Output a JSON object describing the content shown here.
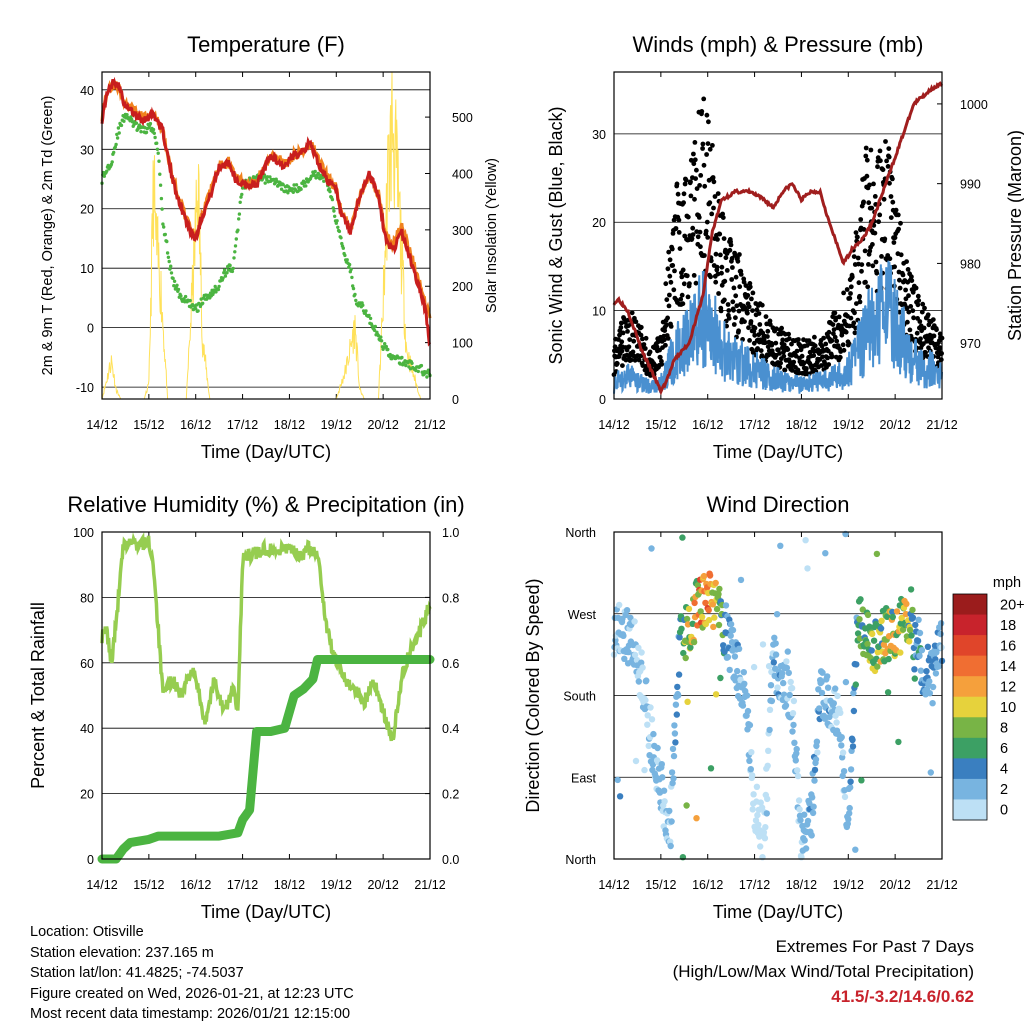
{
  "colors": {
    "temp2m": "#c81e1e",
    "temp9m": "#f0821e",
    "dewpoint": "#4bb441",
    "solar": "#ffe15a",
    "wind": "#4a90d0",
    "gust": "#000000",
    "pressure": "#a01e1e",
    "rh": "#96cd50",
    "precip": "#4bb441",
    "extremes": "#c8232c"
  },
  "chart_data": [
    {
      "id": "temperature",
      "type": "line",
      "title": "Temperature (F)",
      "xlabel": "Time (Day/UTC)",
      "ylabel": "2m & 9m T (Red, Orange) & 2m Td (Green)",
      "ylabel_right": "Solar Insolation (Yellow)",
      "x_ticks": [
        "14/12",
        "15/12",
        "16/12",
        "17/12",
        "18/12",
        "19/12",
        "20/12",
        "21/12"
      ],
      "ylim": [
        -12,
        43
      ],
      "yticks": [
        -10,
        0,
        10,
        20,
        30,
        40
      ],
      "ylim_right": [
        0,
        580
      ],
      "yticks_right": [
        0,
        100,
        200,
        300,
        400,
        500
      ],
      "grid": true,
      "series": [
        {
          "name": "2m T",
          "color": "#c81e1e",
          "x": [
            0,
            0.1,
            0.25,
            0.35,
            0.5,
            0.7,
            0.9,
            1.1,
            1.3,
            1.5,
            1.7,
            1.9,
            2.0,
            2.1,
            2.3,
            2.5,
            2.7,
            2.85,
            3.0,
            3.3,
            3.6,
            3.75,
            3.9,
            4.1,
            4.3,
            4.45,
            4.6,
            4.8,
            5.0,
            5.1,
            5.3,
            5.5,
            5.7,
            5.9,
            6.05,
            6.2,
            6.4,
            6.6,
            6.8,
            6.9,
            7.0
          ],
          "values": [
            35,
            39,
            41.5,
            41,
            37,
            36,
            35,
            36,
            33,
            25,
            20,
            16,
            15,
            18,
            22,
            27,
            28,
            25,
            24,
            24,
            29,
            28,
            27,
            29,
            30,
            31,
            28,
            25,
            23,
            19,
            16,
            22,
            26,
            22,
            15,
            13,
            16,
            11,
            6,
            3,
            -3
          ]
        },
        {
          "name": "9m T",
          "color": "#f0821e",
          "x": [
            0,
            0.1,
            0.25,
            0.35,
            0.5,
            0.7,
            0.9,
            1.1,
            1.3,
            1.5,
            1.7,
            1.9,
            2.0,
            2.1,
            2.3,
            2.5,
            2.7,
            2.85,
            3.0,
            3.3,
            3.6,
            3.75,
            3.9,
            4.1,
            4.3,
            4.45,
            4.6,
            4.8,
            5.0,
            5.1,
            5.3,
            5.5,
            5.7,
            5.9,
            6.05,
            6.2,
            6.4,
            6.6,
            6.8,
            6.9,
            7.0
          ],
          "values": [
            35.5,
            39.5,
            41,
            40.5,
            37.5,
            36.5,
            35.5,
            36,
            33,
            25.5,
            20.5,
            16.5,
            15.5,
            18,
            22.5,
            27,
            28,
            25.5,
            24.5,
            24.5,
            29,
            28.5,
            27.5,
            29,
            30,
            31,
            28.5,
            25.5,
            23.5,
            19.5,
            16.5,
            22,
            25.5,
            22.5,
            16,
            14,
            17,
            12,
            7,
            4,
            2
          ]
        },
        {
          "name": "2m Td",
          "color": "#4bb441",
          "x": [
            0,
            0.2,
            0.35,
            0.5,
            0.7,
            0.9,
            1.0,
            1.1,
            1.2,
            1.3,
            1.5,
            1.7,
            1.9,
            2.0,
            2.2,
            2.5,
            2.6,
            2.7,
            2.8,
            3.0,
            3.3,
            3.6,
            3.8,
            4.0,
            4.3,
            4.5,
            4.8,
            5.0,
            5.2,
            5.3,
            5.4,
            5.6,
            5.8,
            6.0,
            6.2,
            6.5,
            6.8,
            7.0
          ],
          "values": [
            25,
            28,
            33,
            36,
            34,
            33,
            34,
            33,
            30,
            18,
            8,
            5,
            4,
            3,
            5,
            7,
            9,
            10,
            10,
            24,
            25,
            25,
            24,
            23,
            24,
            26,
            25,
            18,
            12,
            10,
            5,
            3,
            0,
            -3,
            -5,
            -6,
            -7,
            -8
          ]
        },
        {
          "name": "Solar",
          "color": "#ffe15a",
          "x": [
            0,
            0.2,
            0.3,
            0.4,
            0.55,
            0.9,
            1.0,
            1.1,
            1.15,
            1.25,
            1.4,
            1.6,
            1.8,
            1.95,
            2.05,
            2.15,
            2.3,
            2.6,
            2.8,
            3.2,
            3.6,
            4.0,
            4.4,
            4.8,
            5.0,
            5.2,
            5.4,
            5.5,
            5.6,
            5.9,
            6.0,
            6.1,
            6.2,
            6.35,
            6.5,
            6.8,
            7.0
          ],
          "values": [
            0,
            80,
            20,
            0,
            0,
            0,
            30,
            450,
            330,
            240,
            0,
            0,
            0,
            260,
            450,
            120,
            0,
            0,
            0,
            0,
            0,
            0,
            0,
            0,
            0,
            60,
            150,
            20,
            0,
            0,
            200,
            450,
            580,
            380,
            100,
            0,
            0
          ]
        }
      ]
    },
    {
      "id": "winds",
      "type": "scatter",
      "title": "Winds (mph) & Pressure (mb)",
      "xlabel": "Time (Day/UTC)",
      "ylabel": "Sonic Wind & Gust (Blue, Black)",
      "ylabel_right": "Station Pressure (Maroon)",
      "x_ticks": [
        "14/12",
        "15/12",
        "16/12",
        "17/12",
        "18/12",
        "19/12",
        "20/12",
        "21/12"
      ],
      "ylim": [
        0,
        37
      ],
      "yticks": [
        0,
        10,
        20,
        30
      ],
      "ylim_right": [
        963,
        1004
      ],
      "yticks_right": [
        970,
        980,
        990,
        1000
      ],
      "grid": true,
      "series": [
        {
          "name": "Sonic Wind",
          "color": "#4a90d0",
          "x": [
            0,
            0.3,
            0.6,
            0.8,
            1.0,
            1.3,
            1.6,
            1.9,
            2.1,
            2.4,
            2.7,
            3.0,
            3.3,
            3.6,
            3.9,
            4.2,
            4.5,
            4.8,
            5.0,
            5.2,
            5.4,
            5.6,
            5.8,
            6.0,
            6.3,
            6.6,
            6.8,
            7.0
          ],
          "values": [
            2,
            3,
            2,
            1.5,
            2,
            6,
            8,
            11,
            9,
            6,
            5,
            4,
            3,
            2.5,
            2,
            2,
            2.5,
            3,
            4,
            6,
            9,
            10,
            12,
            10,
            6,
            4,
            4,
            3
          ]
        },
        {
          "name": "Gust",
          "color": "#000000",
          "x": [
            0,
            0.3,
            0.6,
            0.8,
            1.0,
            1.3,
            1.6,
            1.9,
            2.1,
            2.4,
            2.7,
            3.0,
            3.3,
            3.6,
            3.9,
            4.2,
            4.5,
            4.8,
            5.0,
            5.2,
            5.4,
            5.6,
            5.8,
            6.0,
            6.3,
            6.6,
            6.8,
            7.0
          ],
          "values": [
            5,
            8,
            6,
            4,
            6,
            18,
            20,
            26,
            22,
            14,
            12,
            9,
            7,
            6,
            5,
            5,
            6,
            8,
            10,
            15,
            22,
            20,
            23,
            17,
            11,
            8,
            7,
            6
          ]
        },
        {
          "name": "Station Pressure",
          "color": "#a01e1e",
          "x": [
            0,
            0.1,
            0.3,
            0.6,
            1.0,
            1.1,
            1.3,
            1.6,
            1.9,
            2.1,
            2.3,
            2.6,
            2.9,
            3.2,
            3.4,
            3.6,
            3.8,
            4.0,
            4.2,
            4.4,
            4.6,
            4.9,
            5.1,
            5.3,
            5.5,
            5.8,
            6.1,
            6.4,
            6.6,
            6.8,
            7.0
          ],
          "values": [
            975,
            975.5,
            974,
            969,
            964,
            965,
            968,
            970,
            976,
            984,
            988,
            989,
            989,
            988,
            987,
            989,
            990,
            988,
            989,
            989,
            985,
            980,
            982,
            983,
            985,
            990,
            995,
            1000,
            1001,
            1002,
            1002.5
          ]
        }
      ]
    },
    {
      "id": "humidity",
      "type": "line",
      "title": "Relative Humidity (%) & Precipitation (in)",
      "xlabel": "Time (Day/UTC)",
      "ylabel": "Percent & Total Rainfall",
      "x_ticks": [
        "14/12",
        "15/12",
        "16/12",
        "17/12",
        "18/12",
        "19/12",
        "20/12",
        "21/12"
      ],
      "ylim": [
        0,
        100
      ],
      "yticks": [
        0,
        20,
        40,
        60,
        80,
        100
      ],
      "ylim_right": [
        0,
        1.0
      ],
      "yticks_right": [
        "0.0",
        "0.2",
        "0.4",
        "0.6",
        "0.8",
        "1.0"
      ],
      "grid": true,
      "series": [
        {
          "name": "RH",
          "color": "#96cd50",
          "x": [
            0,
            0.1,
            0.2,
            0.3,
            0.45,
            0.6,
            0.8,
            1.0,
            1.1,
            1.3,
            1.5,
            1.7,
            1.9,
            2.0,
            2.2,
            2.4,
            2.6,
            2.8,
            2.9,
            3.0,
            3.2,
            3.5,
            3.8,
            4.0,
            4.2,
            4.4,
            4.6,
            4.8,
            5.0,
            5.2,
            5.4,
            5.6,
            5.8,
            6.0,
            6.2,
            6.4,
            6.6,
            6.8,
            7.0
          ],
          "values": [
            68,
            70,
            60,
            72,
            95,
            97,
            96,
            97,
            90,
            50,
            55,
            50,
            58,
            55,
            42,
            55,
            45,
            52,
            44,
            92,
            93,
            95,
            94,
            96,
            92,
            95,
            94,
            70,
            60,
            55,
            52,
            48,
            55,
            45,
            36,
            55,
            65,
            70,
            78
          ]
        },
        {
          "name": "Total Precipitation",
          "color": "#4bb441",
          "x": [
            0,
            0.3,
            0.45,
            0.6,
            1.0,
            1.2,
            1.5,
            2.0,
            2.5,
            2.9,
            3.0,
            3.15,
            3.3,
            3.6,
            3.9,
            4.0,
            4.1,
            4.3,
            4.5,
            4.6,
            4.7,
            5.0,
            5.5,
            6.0,
            6.5,
            7.0
          ],
          "values": [
            0,
            0,
            0.03,
            0.05,
            0.06,
            0.07,
            0.07,
            0.07,
            0.07,
            0.08,
            0.12,
            0.15,
            0.39,
            0.39,
            0.4,
            0.45,
            0.5,
            0.52,
            0.55,
            0.61,
            0.61,
            0.61,
            0.61,
            0.61,
            0.61,
            0.61
          ]
        }
      ]
    },
    {
      "id": "wind_direction",
      "type": "scatter",
      "title": "Wind Direction",
      "xlabel": "Time (Day/UTC)",
      "ylabel": "Direction (Colored By Speed)",
      "x_ticks": [
        "14/12",
        "15/12",
        "16/12",
        "17/12",
        "18/12",
        "19/12",
        "20/12",
        "21/12"
      ],
      "ylim": [
        0,
        360
      ],
      "yticks": [
        "North",
        "East",
        "South",
        "West",
        "North"
      ],
      "grid": true,
      "colorbar": {
        "label": "mph",
        "labels": [
          "20+",
          "18",
          "16",
          "14",
          "12",
          "10",
          "8",
          "6",
          "4",
          "2",
          "0"
        ],
        "colors": [
          "#9b1c1c",
          "#c8232c",
          "#e0452a",
          "#f06e32",
          "#f5a03c",
          "#e6d23c",
          "#78b446",
          "#3ca064",
          "#3a7fc0",
          "#78b4e0",
          "#bde0f5"
        ]
      },
      "series": [
        {
          "name": "direction",
          "x": [
            0,
            0.2,
            0.4,
            0.6,
            0.8,
            1.0,
            1.2,
            1.4,
            1.6,
            1.8,
            2.0,
            2.2,
            2.4,
            2.6,
            2.8,
            3.0,
            3.2,
            3.4,
            3.6,
            3.8,
            4.0,
            4.2,
            4.4,
            4.6,
            4.8,
            5.0,
            5.2,
            5.4,
            5.6,
            5.8,
            6.0,
            6.2,
            6.4,
            6.6,
            6.8,
            7.0
          ],
          "values": [
            255,
            250,
            240,
            200,
            130,
            80,
            30,
            240,
            255,
            280,
            290,
            275,
            250,
            215,
            180,
            60,
            20,
            220,
            200,
            180,
            20,
            40,
            190,
            170,
            150,
            40,
            260,
            250,
            230,
            250,
            240,
            270,
            240,
            210,
            200,
            240
          ],
          "speeds": [
            3,
            3,
            2,
            2,
            2,
            3,
            2,
            5,
            10,
            13,
            12,
            10,
            4,
            3,
            3,
            1,
            1,
            3,
            3,
            2,
            2,
            3,
            3,
            3,
            2,
            3,
            6,
            8,
            8,
            10,
            9,
            11,
            6,
            4,
            4,
            3
          ]
        }
      ]
    }
  ],
  "footer": {
    "location": "Location: Otisville",
    "elevation": "Station elevation: 237.165 m",
    "latlon": "Station lat/lon: 41.4825; -74.5037",
    "created": "Figure created on Wed, 2026-01-21, at 12:23 UTC",
    "recent": "Most recent data timestamp: 2026/01/21 12:15:00"
  },
  "extremes": {
    "title": "Extremes For Past 7 Days",
    "subtitle": "(High/Low/Max Wind/Total Precipitation)",
    "values": "41.5/-3.2/14.6/0.62"
  }
}
